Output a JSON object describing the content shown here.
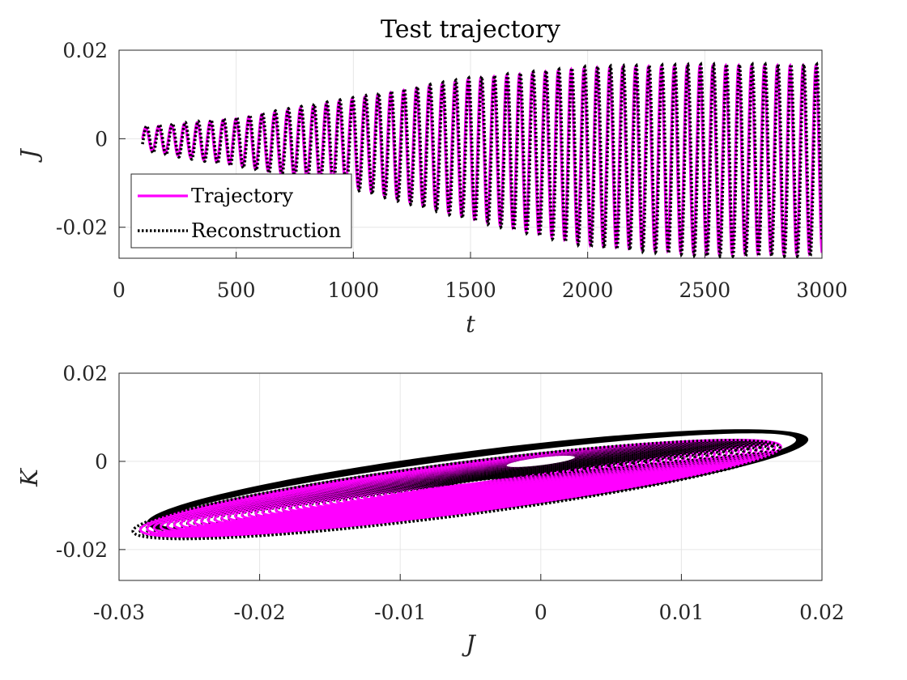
{
  "chart_data": [
    {
      "type": "line",
      "title": "Test trajectory",
      "xlabel": "t",
      "ylabel": "J",
      "xlim": [
        0,
        3000
      ],
      "ylim": [
        -0.027,
        0.02
      ],
      "xticks": [
        0,
        500,
        1000,
        1500,
        2000,
        2500,
        3000
      ],
      "xtick_labels": [
        "0",
        "500",
        "1000",
        "1500",
        "2000",
        "2500",
        "3000"
      ],
      "yticks": [
        0.02,
        0,
        -0.02
      ],
      "ytick_labels": [
        "0.02",
        "0",
        "-0.02"
      ],
      "grid": true,
      "legend": {
        "position": "bottom-left"
      },
      "x_start": 100,
      "x_end": 3000,
      "oscillation_period": 55,
      "series": [
        {
          "name": "Trajectory",
          "style": "solid",
          "color": "#ff00ff",
          "envelope_x": [
            100,
            500,
            1000,
            1500,
            2000,
            2500,
            3000
          ],
          "envelope_max": [
            0.0025,
            0.0045,
            0.009,
            0.0135,
            0.016,
            0.0165,
            0.0165
          ],
          "envelope_min": [
            -0.0025,
            -0.006,
            -0.011,
            -0.018,
            -0.024,
            -0.026,
            -0.026
          ]
        },
        {
          "name": "Reconstruction",
          "style": "dotted",
          "color": "#000000",
          "envelope_x": [
            100,
            500,
            1000,
            1500,
            2000,
            2500,
            3000
          ],
          "envelope_max": [
            0.0028,
            0.0048,
            0.0093,
            0.0138,
            0.0163,
            0.0168,
            0.0168
          ],
          "envelope_min": [
            -0.0028,
            -0.0063,
            -0.0114,
            -0.0184,
            -0.0244,
            -0.0265,
            -0.0265
          ]
        }
      ]
    },
    {
      "type": "line",
      "title": "",
      "xlabel": "J",
      "ylabel": "K",
      "xlim": [
        -0.03,
        0.02
      ],
      "ylim": [
        -0.027,
        0.02
      ],
      "xticks": [
        -0.03,
        -0.02,
        -0.01,
        0,
        0.01,
        0.02
      ],
      "xtick_labels": [
        "-0.03",
        "-0.02",
        "-0.01",
        "0",
        "0.01",
        "0.02"
      ],
      "yticks": [
        0.02,
        0,
        -0.02
      ],
      "ytick_labels": [
        "0.02",
        "0",
        "-0.02"
      ],
      "grid": true,
      "ellipse": {
        "center": [
          -0.0045,
          -0.0045
        ],
        "angle_deg": 23.5,
        "outer_semi_axes": [
          0.0255,
          0.0065
        ],
        "inner_semi_axes": [
          0.0025,
          0.0004
        ]
      },
      "series": [
        {
          "name": "Trajectory",
          "style": "solid",
          "color": "#ff00ff"
        },
        {
          "name": "Reconstruction",
          "style": "dotted",
          "color": "#000000"
        }
      ]
    }
  ]
}
